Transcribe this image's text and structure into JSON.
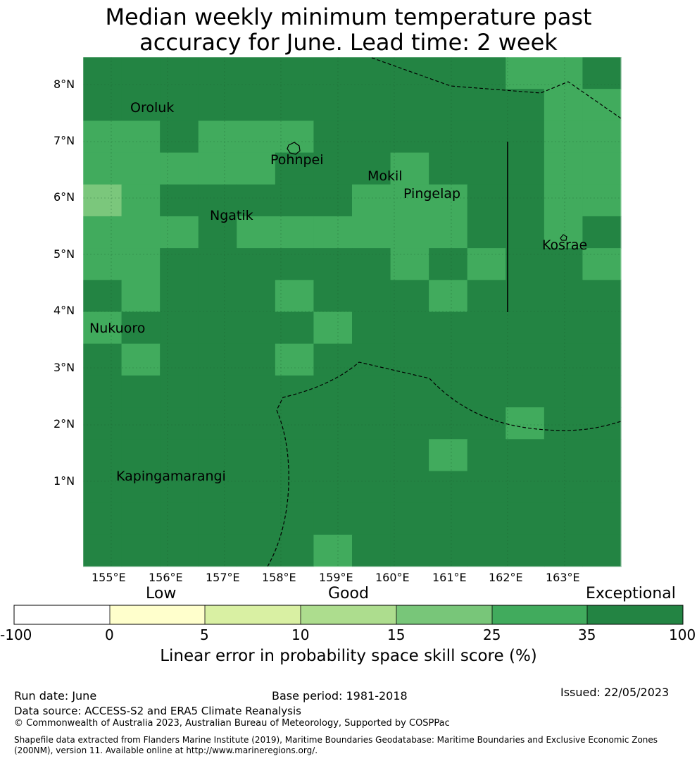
{
  "title_line1": "Median weekly minimum temperature past",
  "title_line2": "accuracy for June. Lead time: 2 week",
  "map": {
    "lon_ticks": [
      "155°E",
      "156°E",
      "157°E",
      "158°E",
      "159°E",
      "160°E",
      "161°E",
      "162°E",
      "163°E"
    ],
    "lat_ticks": [
      "8°N",
      "7°N",
      "6°N",
      "5°N",
      "4°N",
      "3°N",
      "2°N",
      "1°N"
    ],
    "places": [
      "Oroluk",
      "Pohnpei",
      "Mokil",
      "Pingelap",
      "Ngatik",
      "Kosrae",
      "Nukuoro",
      "Kapingamarangi"
    ],
    "colors": {
      "c25": "#7bc77c",
      "c35": "#41ab5d",
      "c100": "#238443"
    },
    "grid_levels": [
      [
        3,
        3,
        3,
        3,
        3,
        3,
        3,
        3,
        3,
        3,
        3,
        4,
        4,
        3
      ],
      [
        3,
        3,
        3,
        3,
        3,
        3,
        3,
        3,
        3,
        3,
        3,
        3,
        4,
        4
      ],
      [
        4,
        4,
        3,
        4,
        4,
        4,
        3,
        3,
        3,
        3,
        3,
        3,
        4,
        4
      ],
      [
        4,
        4,
        4,
        4,
        4,
        3,
        3,
        3,
        4,
        3,
        3,
        3,
        4,
        4
      ],
      [
        5,
        4,
        3,
        3,
        3,
        3,
        3,
        4,
        4,
        4,
        3,
        3,
        4,
        4
      ],
      [
        4,
        4,
        4,
        3,
        4,
        4,
        4,
        4,
        4,
        4,
        3,
        3,
        4,
        3
      ],
      [
        4,
        4,
        3,
        3,
        3,
        3,
        3,
        3,
        4,
        3,
        4,
        3,
        3,
        4
      ],
      [
        3,
        4,
        3,
        3,
        3,
        4,
        3,
        3,
        3,
        4,
        3,
        3,
        3,
        3
      ],
      [
        4,
        3,
        3,
        3,
        3,
        3,
        4,
        3,
        3,
        3,
        3,
        3,
        3,
        3
      ],
      [
        3,
        4,
        3,
        3,
        3,
        4,
        3,
        3,
        3,
        3,
        3,
        3,
        3,
        3
      ],
      [
        3,
        3,
        3,
        3,
        3,
        3,
        3,
        3,
        3,
        3,
        3,
        3,
        3,
        3
      ],
      [
        3,
        3,
        3,
        3,
        3,
        3,
        3,
        3,
        3,
        3,
        3,
        4,
        3,
        3
      ],
      [
        3,
        3,
        3,
        3,
        3,
        3,
        3,
        3,
        3,
        4,
        3,
        3,
        3,
        3
      ],
      [
        3,
        3,
        3,
        3,
        3,
        3,
        3,
        3,
        3,
        3,
        3,
        3,
        3,
        3
      ],
      [
        3,
        3,
        3,
        3,
        3,
        3,
        3,
        3,
        3,
        3,
        3,
        3,
        3,
        3
      ],
      [
        3,
        3,
        3,
        3,
        3,
        3,
        4,
        3,
        3,
        3,
        3,
        3,
        3,
        3
      ]
    ]
  },
  "legend": {
    "categories": [
      "Low",
      "Good",
      "Exceptional"
    ],
    "ticks": [
      "-100",
      "0",
      "5",
      "10",
      "15",
      "25",
      "35",
      "100"
    ],
    "colors": [
      "#ffffff",
      "#ffffcc",
      "#d9f0a3",
      "#addd8e",
      "#78c679",
      "#41ab5d",
      "#238443"
    ],
    "axis_label": "Linear error in probability space skill score (%)"
  },
  "footer": {
    "run_date": "Run date: June",
    "base_period": "Base period: 1981-2018",
    "issued": "Issued: 22/05/2023",
    "data_source": "Data source: ACCESS-S2 and ERA5 Climate Reanalysis",
    "copyright": "© Commonwealth of Australia 2023, Australian Bureau of Meteorology, Supported by COSPPac",
    "shapefile": "Shapefile data extracted from Flanders Marine Institute (2019), Maritime Boundaries Geodatabase: Maritime Boundaries and Exclusive Economic Zones (200NM), version 11. Available online at http://www.marineregions.org/."
  }
}
